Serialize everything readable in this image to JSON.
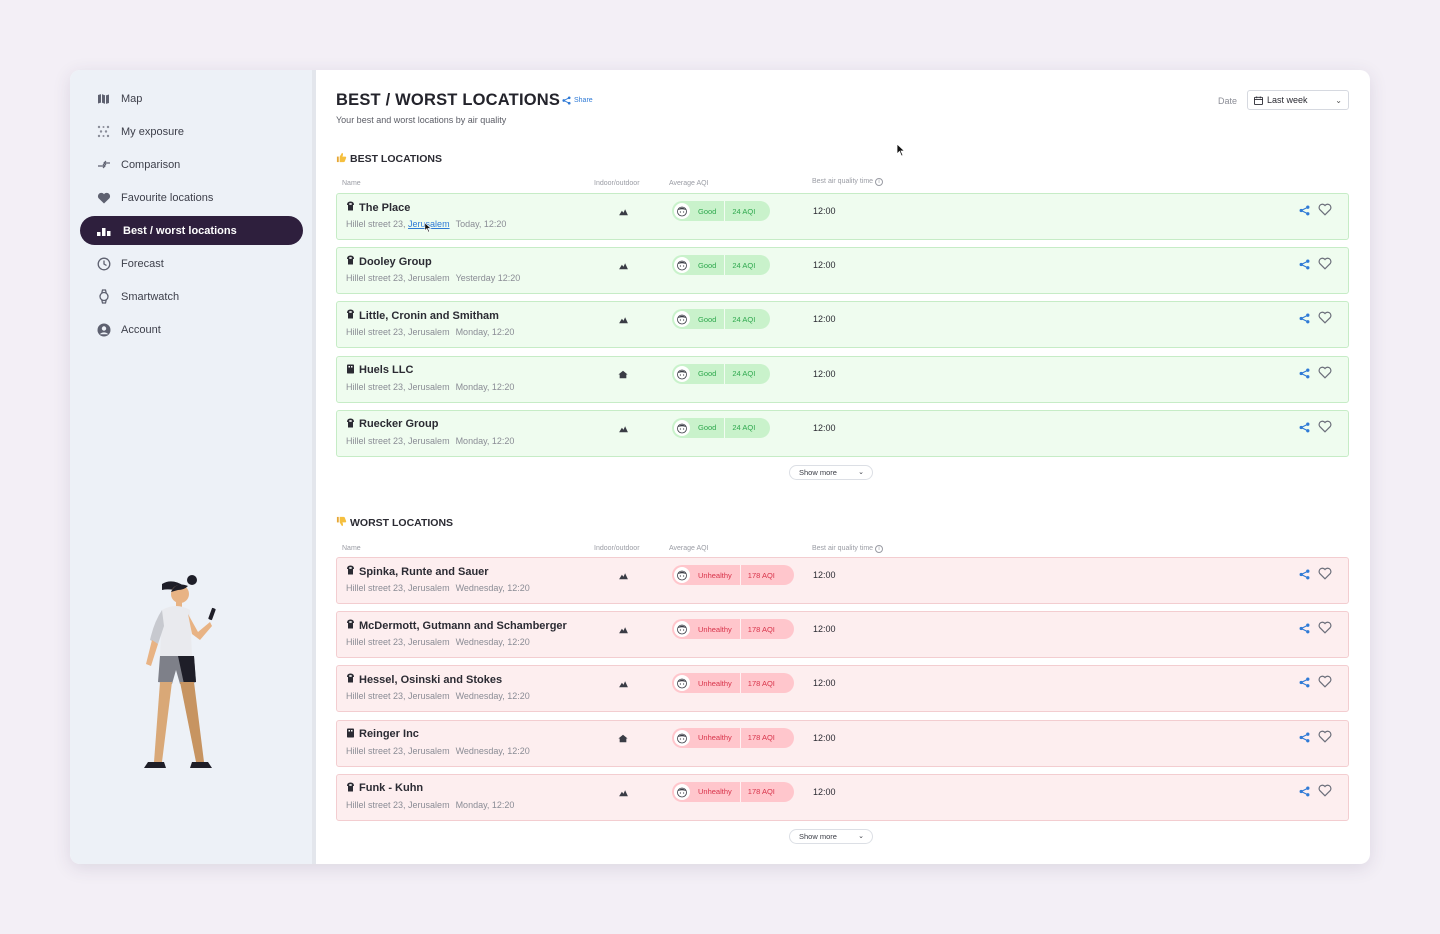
{
  "sidebar": {
    "items": [
      {
        "label": "Map",
        "icon": "map-icon"
      },
      {
        "label": "My exposure",
        "icon": "exposure-icon"
      },
      {
        "label": "Comparison",
        "icon": "comparison-icon"
      },
      {
        "label": "Favourite locations",
        "icon": "heart-icon"
      },
      {
        "label": "Best / worst locations",
        "icon": "bar-chart-icon",
        "active": true
      },
      {
        "label": "Forecast",
        "icon": "clock-icon"
      },
      {
        "label": "Smartwatch",
        "icon": "watch-icon"
      },
      {
        "label": "Account",
        "icon": "user-icon"
      }
    ]
  },
  "header": {
    "title": "BEST / WORST LOCATIONS",
    "share_label": "Share",
    "subtitle": "Your best and worst locations by air quality",
    "date_label": "Date",
    "date_value": "Last week"
  },
  "columns": {
    "name": "Name",
    "indoor_outdoor": "Indoor/outdoor",
    "avg_aqi": "Average AQI",
    "best_time": "Best air quality time"
  },
  "best": {
    "title": "BEST LOCATIONS",
    "show_more": "Show more",
    "rows": [
      {
        "name": "The Place",
        "street": "Hillel street 23,",
        "city": "Jerusalem",
        "when": "Today, 12:20",
        "status": "Good",
        "aqi": "24 AQI",
        "time": "12:00",
        "io": "outdoor"
      },
      {
        "name": "Dooley Group",
        "street": "Hillel street 23,",
        "city": "Jerusalem",
        "when": "Yesterday 12:20",
        "status": "Good",
        "aqi": "24 AQI",
        "time": "12:00",
        "io": "outdoor"
      },
      {
        "name": "Little, Cronin and Smitham",
        "street": "Hillel street 23,",
        "city": "Jerusalem",
        "when": "Monday, 12:20",
        "status": "Good",
        "aqi": "24 AQI",
        "time": "12:00",
        "io": "outdoor"
      },
      {
        "name": "Huels LLC",
        "street": "Hillel street 23,",
        "city": "Jerusalem",
        "when": "Monday, 12:20",
        "status": "Good",
        "aqi": "24 AQI",
        "time": "12:00",
        "io": "indoor"
      },
      {
        "name": "Ruecker Group",
        "street": "Hillel street 23,",
        "city": "Jerusalem",
        "when": "Monday, 12:20",
        "status": "Good",
        "aqi": "24 AQI",
        "time": "12:00",
        "io": "outdoor"
      }
    ]
  },
  "worst": {
    "title": "WORST LOCATIONS",
    "show_more": "Show more",
    "rows": [
      {
        "name": "Spinka, Runte and Sauer",
        "street": "Hillel street 23,",
        "city": "Jerusalem",
        "when": "Wednesday, 12:20",
        "status": "Unhealthy",
        "aqi": "178 AQI",
        "time": "12:00",
        "io": "outdoor"
      },
      {
        "name": "McDermott, Gutmann and Schamberger",
        "street": "Hillel street 23,",
        "city": "Jerusalem",
        "when": "Wednesday, 12:20",
        "status": "Unhealthy",
        "aqi": "178 AQI",
        "time": "12:00",
        "io": "outdoor"
      },
      {
        "name": "Hessel, Osinski and Stokes",
        "street": "Hillel street 23,",
        "city": "Jerusalem",
        "when": "Wednesday, 12:20",
        "status": "Unhealthy",
        "aqi": "178 AQI",
        "time": "12:00",
        "io": "outdoor"
      },
      {
        "name": "Reinger Inc",
        "street": "Hillel street 23,",
        "city": "Jerusalem",
        "when": "Wednesday, 12:20",
        "status": "Unhealthy",
        "aqi": "178 AQI",
        "time": "12:00",
        "io": "indoor"
      },
      {
        "name": "Funk - Kuhn",
        "street": "Hillel street 23,",
        "city": "Jerusalem",
        "when": "Monday, 12:20",
        "status": "Unhealthy",
        "aqi": "178 AQI",
        "time": "12:00",
        "io": "outdoor"
      }
    ]
  },
  "colors": {
    "accent": "#2e1f3d",
    "good": "#2ea84d",
    "bad": "#d8334a",
    "link": "#2f7ad6"
  }
}
